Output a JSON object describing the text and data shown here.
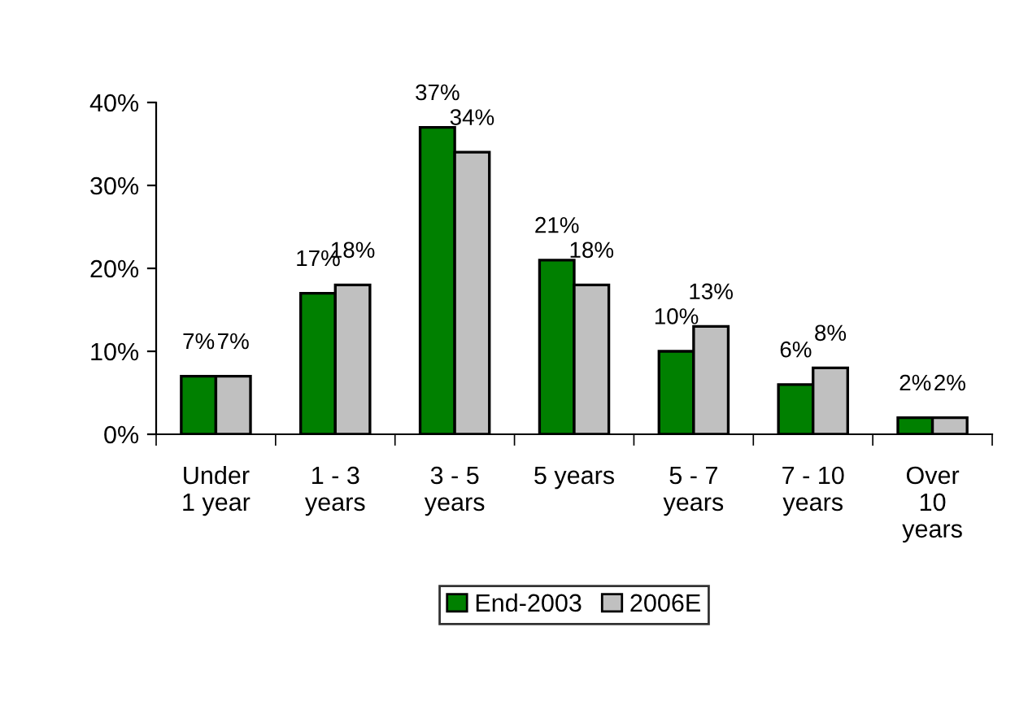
{
  "chart_data": {
    "type": "bar",
    "categories": [
      "Under\n1 year",
      "1 - 3\nyears",
      "3 - 5\nyears",
      "5 years",
      "5 - 7\nyears",
      "7 - 10\nyears",
      "Over\n10\nyears"
    ],
    "series": [
      {
        "name": "End-2003",
        "color": "#008000",
        "values": [
          7,
          17,
          37,
          21,
          10,
          6,
          2
        ],
        "value_labels": [
          "7%",
          "17%",
          "37%",
          "21%",
          "10%",
          "6%",
          "2%"
        ]
      },
      {
        "name": "2006E",
        "color": "#c0c0c0",
        "values": [
          7,
          18,
          34,
          18,
          13,
          8,
          2
        ],
        "value_labels": [
          "7%",
          "18%",
          "34%",
          "18%",
          "13%",
          "8%",
          "2%"
        ]
      }
    ],
    "ylim": [
      0,
      40
    ],
    "yticks": [
      {
        "value": 0,
        "label": "0%"
      },
      {
        "value": 10,
        "label": "10%"
      },
      {
        "value": 20,
        "label": "20%"
      },
      {
        "value": 30,
        "label": "30%"
      },
      {
        "value": 40,
        "label": "40%"
      }
    ],
    "grid": false,
    "legend": "bottom"
  }
}
